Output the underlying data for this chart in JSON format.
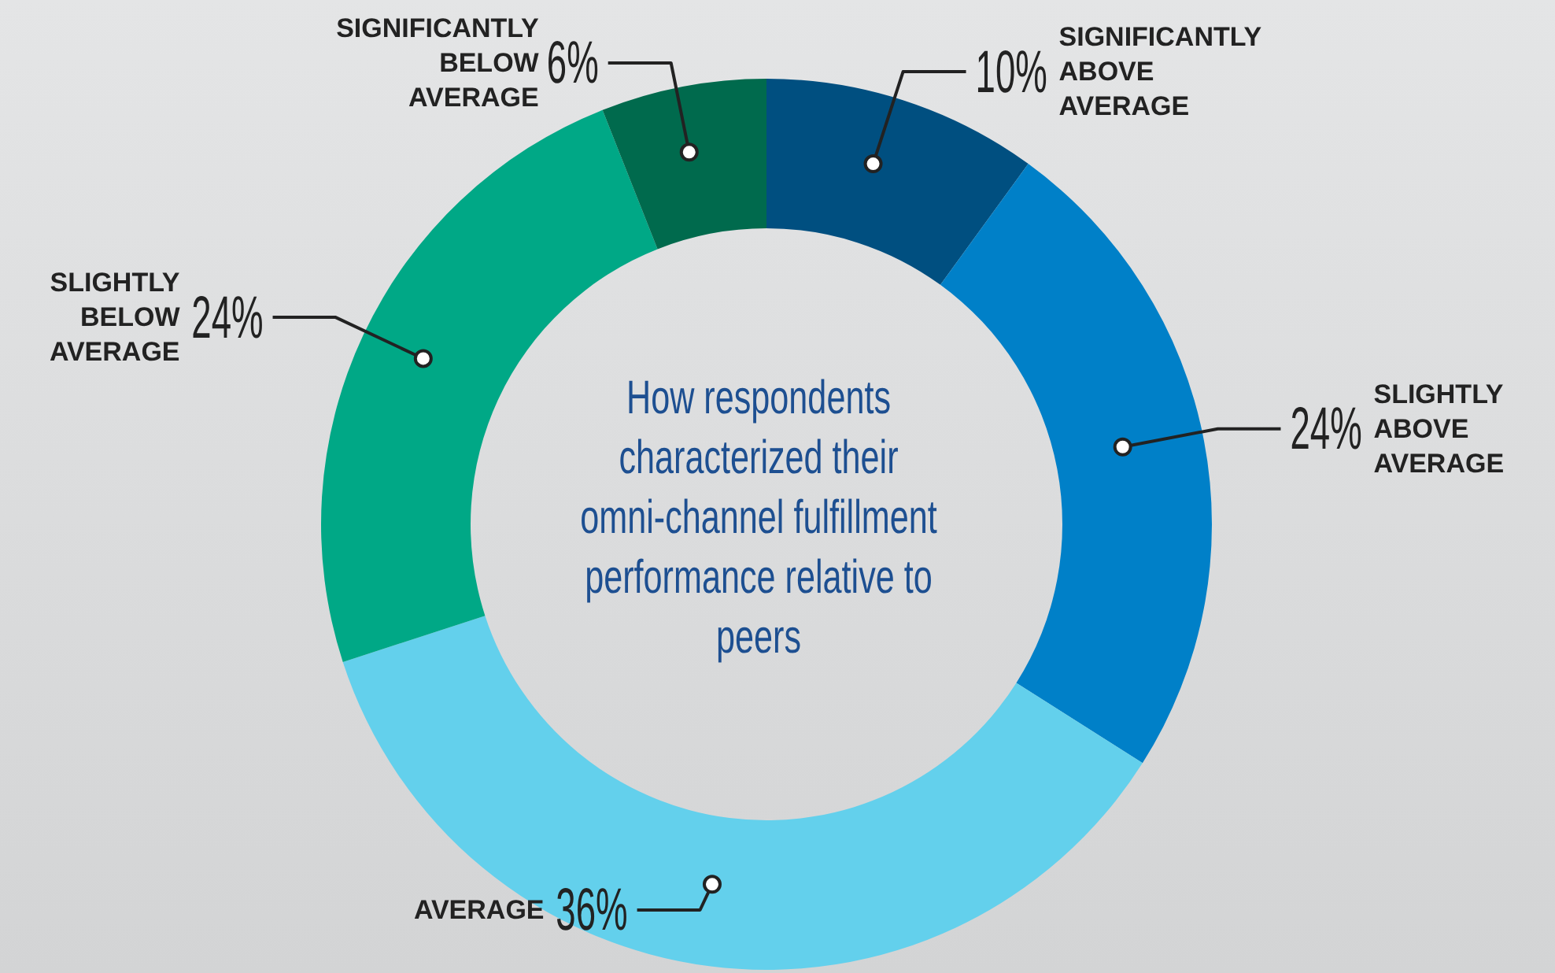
{
  "chart_data": {
    "type": "donut",
    "title": "How respondents characterized their omni-channel fulfillment performance relative to peers",
    "categories": [
      "SIGNIFICANTLY ABOVE AVERAGE",
      "SLIGHTLY ABOVE AVERAGE",
      "AVERAGE",
      "SLIGHTLY BELOW AVERAGE",
      "SIGNIFICANTLY BELOW AVERAGE"
    ],
    "values": [
      10,
      24,
      36,
      24,
      6
    ],
    "value_labels": [
      "10%",
      "24%",
      "36%",
      "24%",
      "6%"
    ],
    "colors": [
      "#004f80",
      "#0080c8",
      "#63d0ec",
      "#00a886",
      "#006a4d"
    ],
    "legend": false
  }
}
